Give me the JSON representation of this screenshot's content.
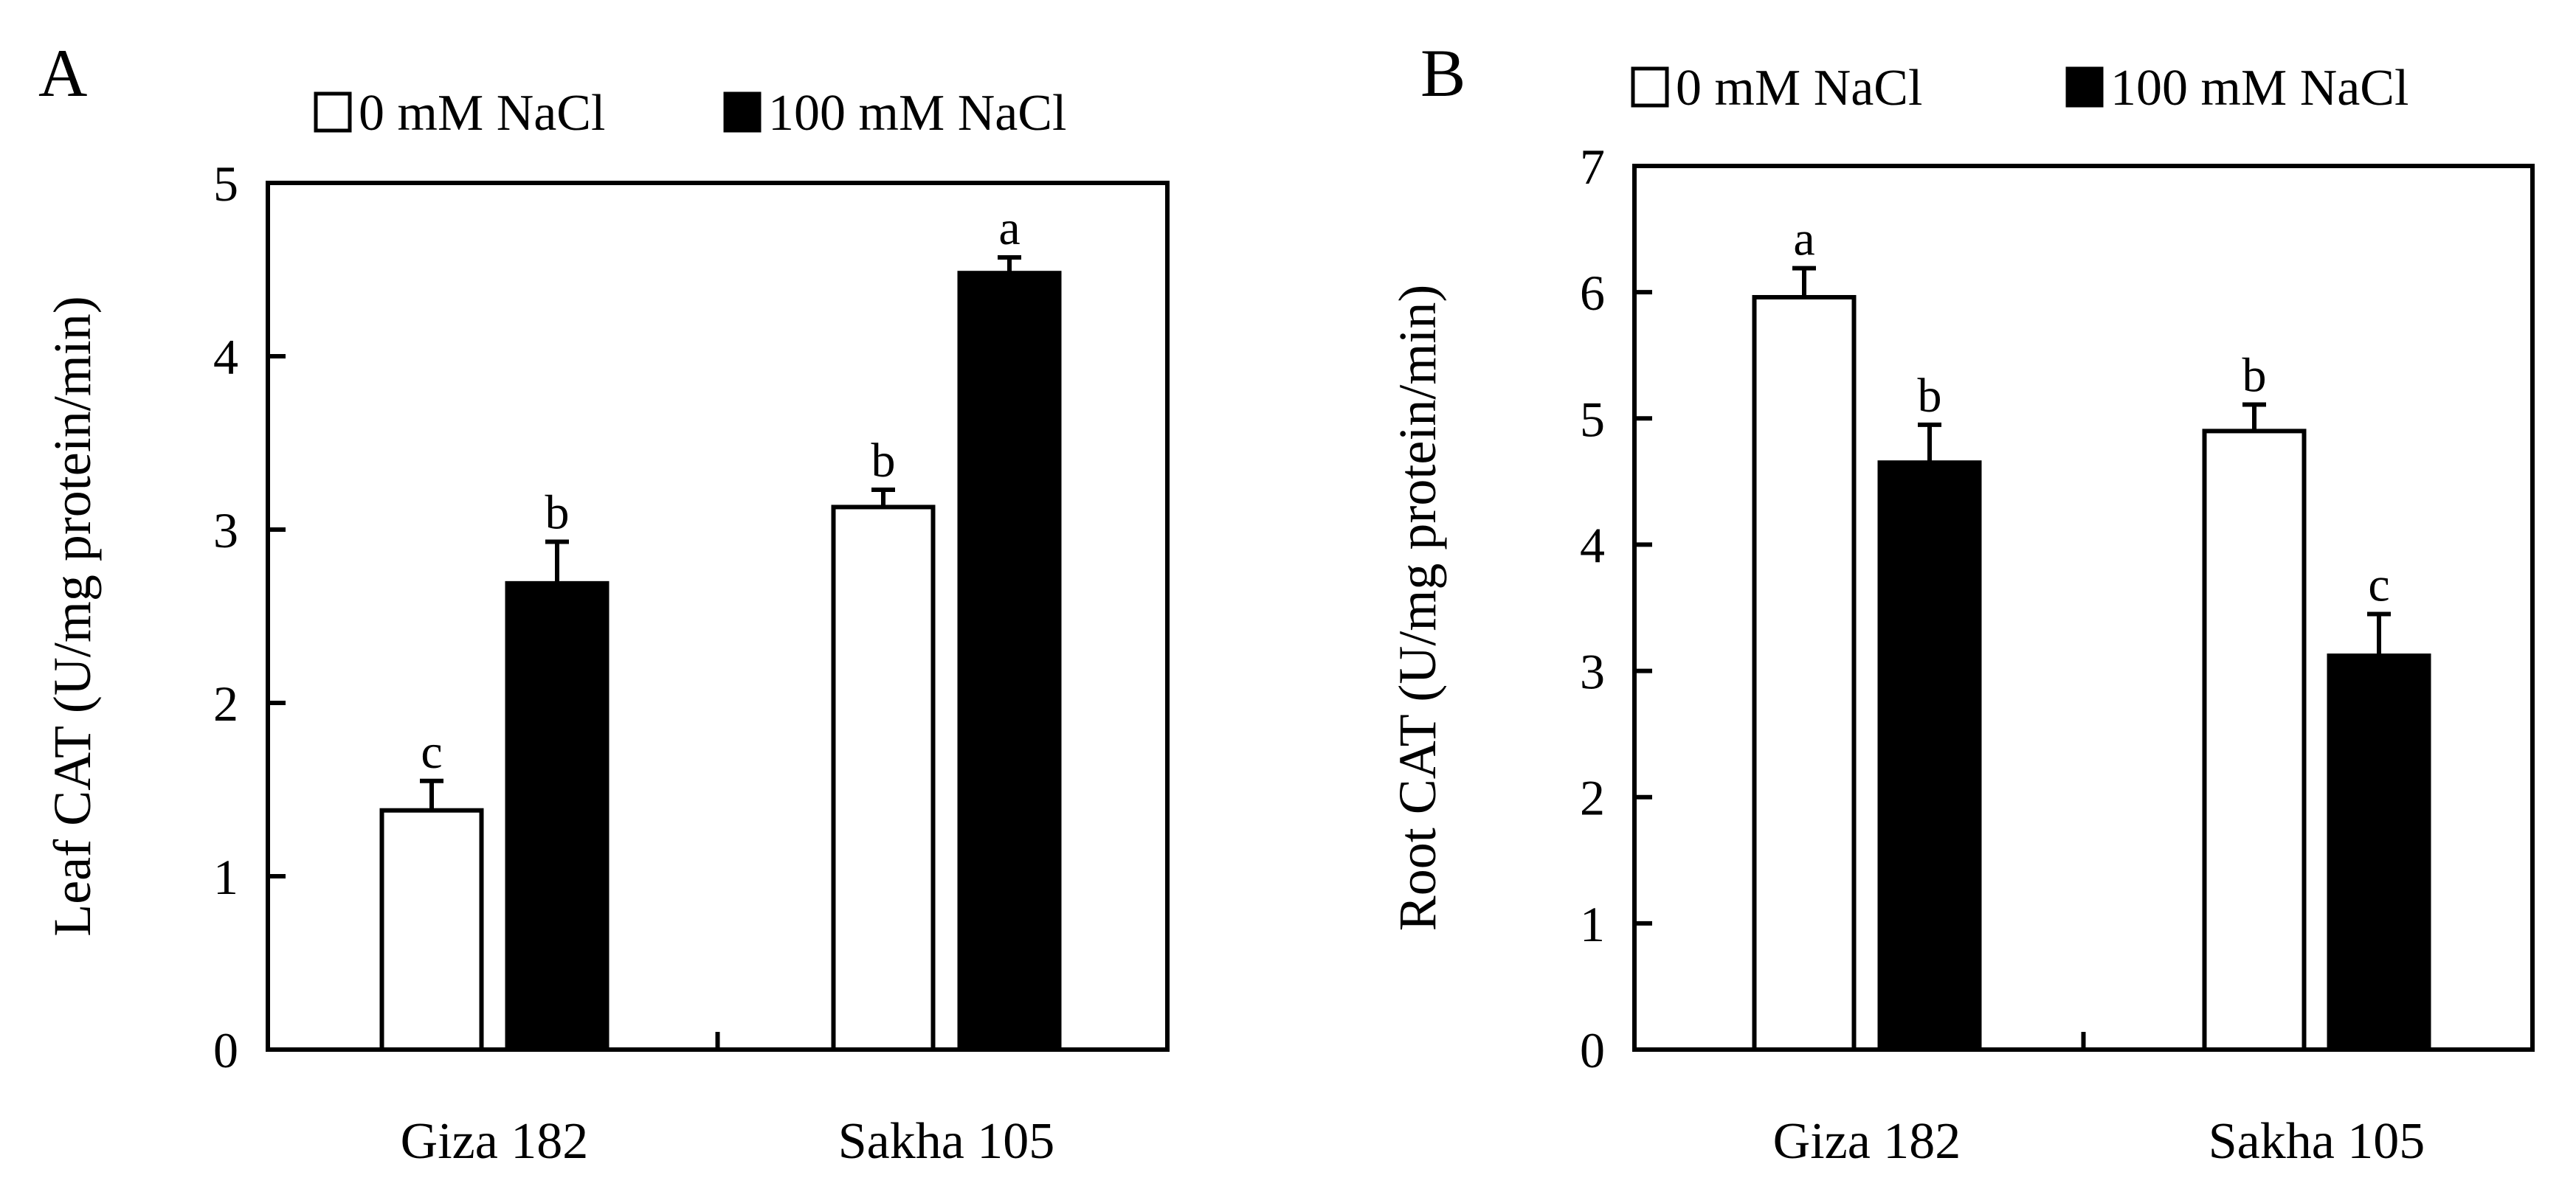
{
  "colors": {
    "control": "#ffffff",
    "treatment": "#000000",
    "stroke": "#000000"
  },
  "chart_data": [
    {
      "type": "bar",
      "panel_label": "A",
      "title": "",
      "xlabel": "",
      "ylabel": "Leaf CAT (U/mg protein/min)",
      "ylim": [
        0,
        5
      ],
      "yticks": [
        0,
        1,
        2,
        3,
        4,
        5
      ],
      "grid": false,
      "legend_position": "top",
      "categories": [
        "Giza 182",
        "Sakha 105"
      ],
      "series": [
        {
          "name": "0 mM NaCl",
          "values": [
            1.38,
            3.13
          ],
          "errors": [
            0.17,
            0.1
          ],
          "letters": [
            "c",
            "b"
          ]
        },
        {
          "name": "100 mM NaCl",
          "values": [
            2.69,
            4.48
          ],
          "errors": [
            0.24,
            0.09
          ],
          "letters": [
            "b",
            "a"
          ]
        }
      ]
    },
    {
      "type": "bar",
      "panel_label": "B",
      "title": "",
      "xlabel": "",
      "ylabel": "Root CAT (U/mg protein/min)",
      "ylim": [
        0,
        7
      ],
      "yticks": [
        0,
        1,
        2,
        3,
        4,
        5,
        6,
        7
      ],
      "grid": false,
      "legend_position": "top",
      "categories": [
        "Giza 182",
        "Sakha 105"
      ],
      "series": [
        {
          "name": "0 mM NaCl",
          "values": [
            5.96,
            4.9
          ],
          "errors": [
            0.23,
            0.21
          ],
          "letters": [
            "a",
            "b"
          ]
        },
        {
          "name": "100 mM NaCl",
          "values": [
            4.65,
            3.12
          ],
          "errors": [
            0.3,
            0.33
          ],
          "letters": [
            "b",
            "c"
          ]
        }
      ]
    }
  ]
}
